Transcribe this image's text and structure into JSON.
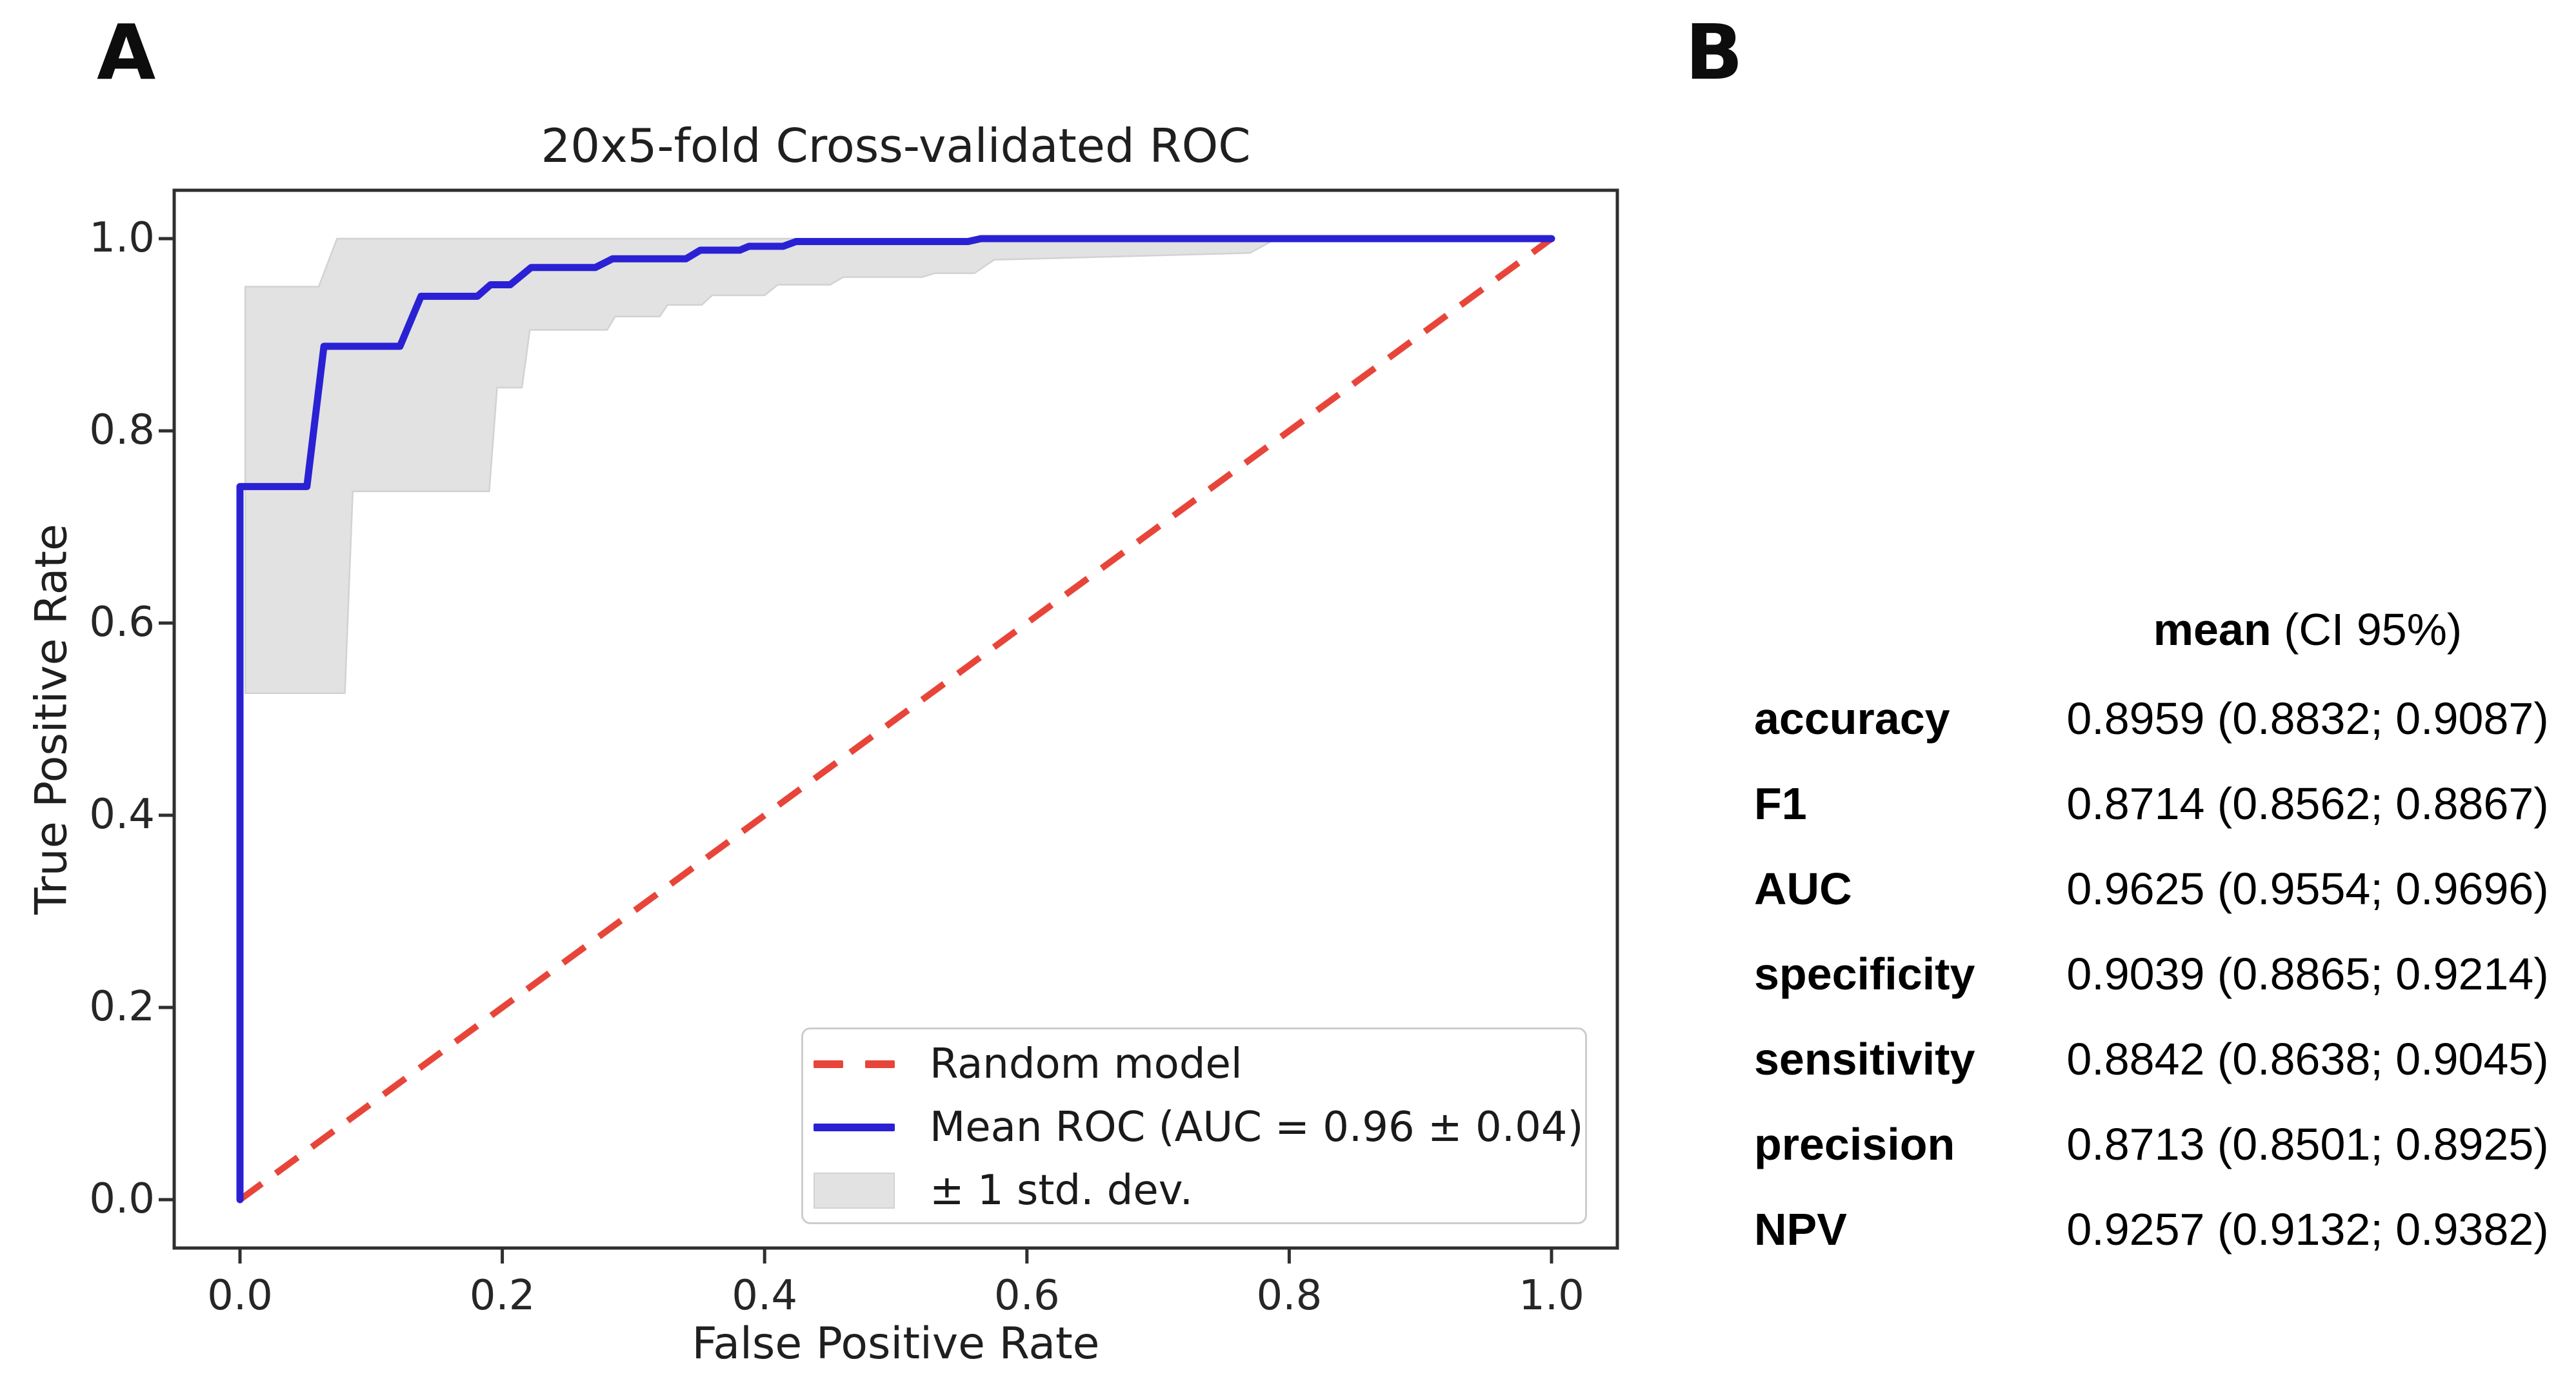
{
  "panel_a": {
    "label": "A"
  },
  "panel_b": {
    "label": "B"
  },
  "chart_data": {
    "type": "line",
    "title": "20x5-fold Cross-validated ROC",
    "xlabel": "False Positive Rate",
    "ylabel": "True Positive Rate",
    "xlim": [
      -0.05,
      1.05
    ],
    "ylim": [
      -0.05,
      1.05
    ],
    "xticks": [
      "0.0",
      "0.2",
      "0.4",
      "0.6",
      "0.8",
      "1.0"
    ],
    "yticks": [
      "0.0",
      "0.2",
      "0.4",
      "0.6",
      "0.8",
      "1.0"
    ],
    "grid": false,
    "legend_position": "lower right",
    "auc_mean": 0.96,
    "auc_std": 0.04,
    "colors": {
      "mean_roc": "#2a21d4",
      "random_model": "#e8453a",
      "band_fill": "#e2e2e2",
      "band_edge": "#d2d2d2",
      "spine": "#2f2f2f"
    },
    "series": [
      {
        "name": "Random model",
        "type": "line",
        "linestyle": "dashed",
        "color": "#e8453a",
        "points": [
          [
            0,
            0
          ],
          [
            1,
            1
          ]
        ]
      },
      {
        "name": "Mean ROC (AUC = 0.96 ± 0.04)",
        "type": "line",
        "linestyle": "solid",
        "color": "#2a21d4",
        "points": [
          [
            0,
            0
          ],
          [
            0,
            0.742
          ],
          [
            0.051,
            0.742
          ],
          [
            0.064,
            0.888
          ],
          [
            0.122,
            0.888
          ],
          [
            0.138,
            0.94
          ],
          [
            0.181,
            0.94
          ],
          [
            0.191,
            0.952
          ],
          [
            0.206,
            0.952
          ],
          [
            0.222,
            0.97
          ],
          [
            0.271,
            0.97
          ],
          [
            0.284,
            0.979
          ],
          [
            0.34,
            0.979
          ],
          [
            0.351,
            0.988
          ],
          [
            0.381,
            0.988
          ],
          [
            0.388,
            0.992
          ],
          [
            0.414,
            0.992
          ],
          [
            0.424,
            0.997
          ],
          [
            0.555,
            0.997
          ],
          [
            0.565,
            1.0
          ],
          [
            1.0,
            1.0
          ]
        ]
      },
      {
        "name": "± 1 std. dev.",
        "type": "band",
        "color": "#e2e2e2",
        "upper": [
          [
            0.004,
            0.95
          ],
          [
            0.06,
            0.95
          ],
          [
            0.074,
            1.0
          ],
          [
            1.0,
            1.0
          ]
        ],
        "lower": [
          [
            0.004,
            0.527
          ],
          [
            0.08,
            0.527
          ],
          [
            0.086,
            0.737
          ],
          [
            0.19,
            0.737
          ],
          [
            0.196,
            0.845
          ],
          [
            0.215,
            0.845
          ],
          [
            0.221,
            0.905
          ],
          [
            0.28,
            0.905
          ],
          [
            0.286,
            0.919
          ],
          [
            0.32,
            0.919
          ],
          [
            0.326,
            0.931
          ],
          [
            0.352,
            0.931
          ],
          [
            0.36,
            0.941
          ],
          [
            0.4,
            0.941
          ],
          [
            0.41,
            0.952
          ],
          [
            0.45,
            0.952
          ],
          [
            0.46,
            0.96
          ],
          [
            0.52,
            0.96
          ],
          [
            0.53,
            0.964
          ],
          [
            0.56,
            0.964
          ],
          [
            0.575,
            0.978
          ],
          [
            0.77,
            0.985
          ],
          [
            0.79,
            1.0
          ],
          [
            1.0,
            1.0
          ]
        ]
      }
    ]
  },
  "metrics_table": {
    "header": {
      "mean_label": "mean",
      "ci_label": " (CI 95%)"
    },
    "rows": [
      {
        "label": "accuracy",
        "value": "0.8959 (0.8832; 0.9087)"
      },
      {
        "label": "F1",
        "value": "0.8714 (0.8562; 0.8867)"
      },
      {
        "label": "AUC",
        "value": "0.9625 (0.9554; 0.9696)"
      },
      {
        "label": "specificity",
        "value": "0.9039 (0.8865; 0.9214)"
      },
      {
        "label": "sensitivity",
        "value": "0.8842 (0.8638; 0.9045)"
      },
      {
        "label": "precision",
        "value": "0.8713 (0.8501; 0.8925)"
      },
      {
        "label": "NPV",
        "value": "0.9257 (0.9132; 0.9382)"
      }
    ]
  }
}
